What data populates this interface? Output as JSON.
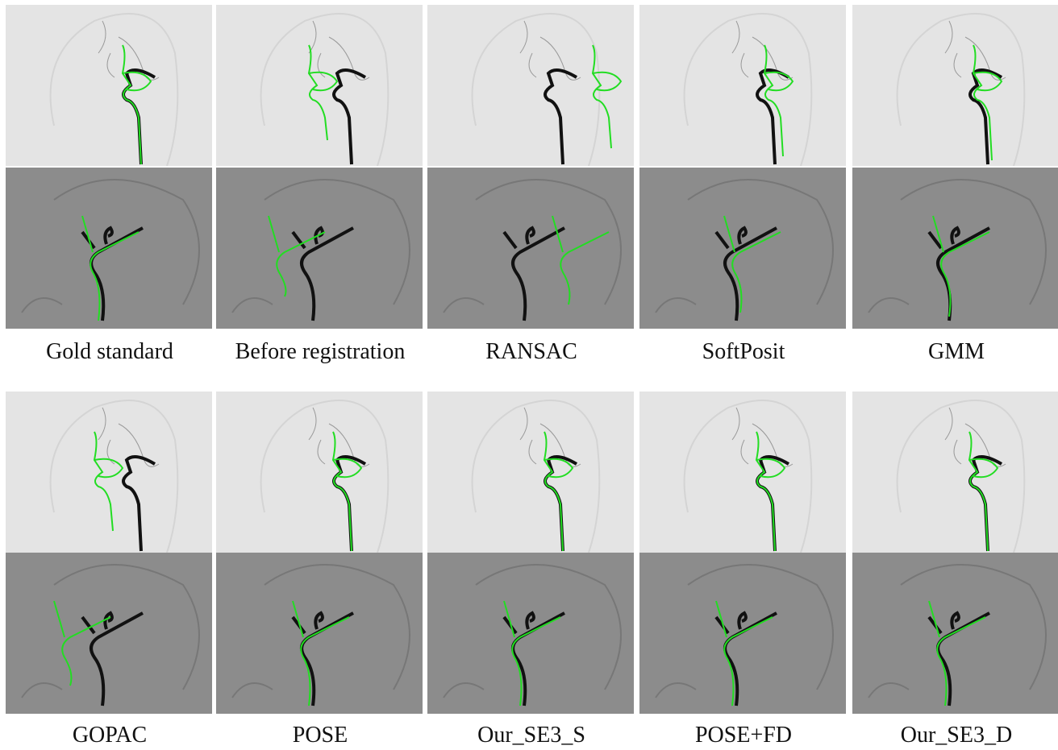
{
  "figure": {
    "rows": [
      {
        "captions": [
          "Gold standard",
          "Before registration",
          "RANSAC",
          "SoftPosit",
          "GMM"
        ]
      },
      {
        "captions": [
          "GOPAC",
          "POSE",
          "Our_SE3_S",
          "POSE+FD",
          "Our_SE3_D"
        ]
      }
    ]
  }
}
